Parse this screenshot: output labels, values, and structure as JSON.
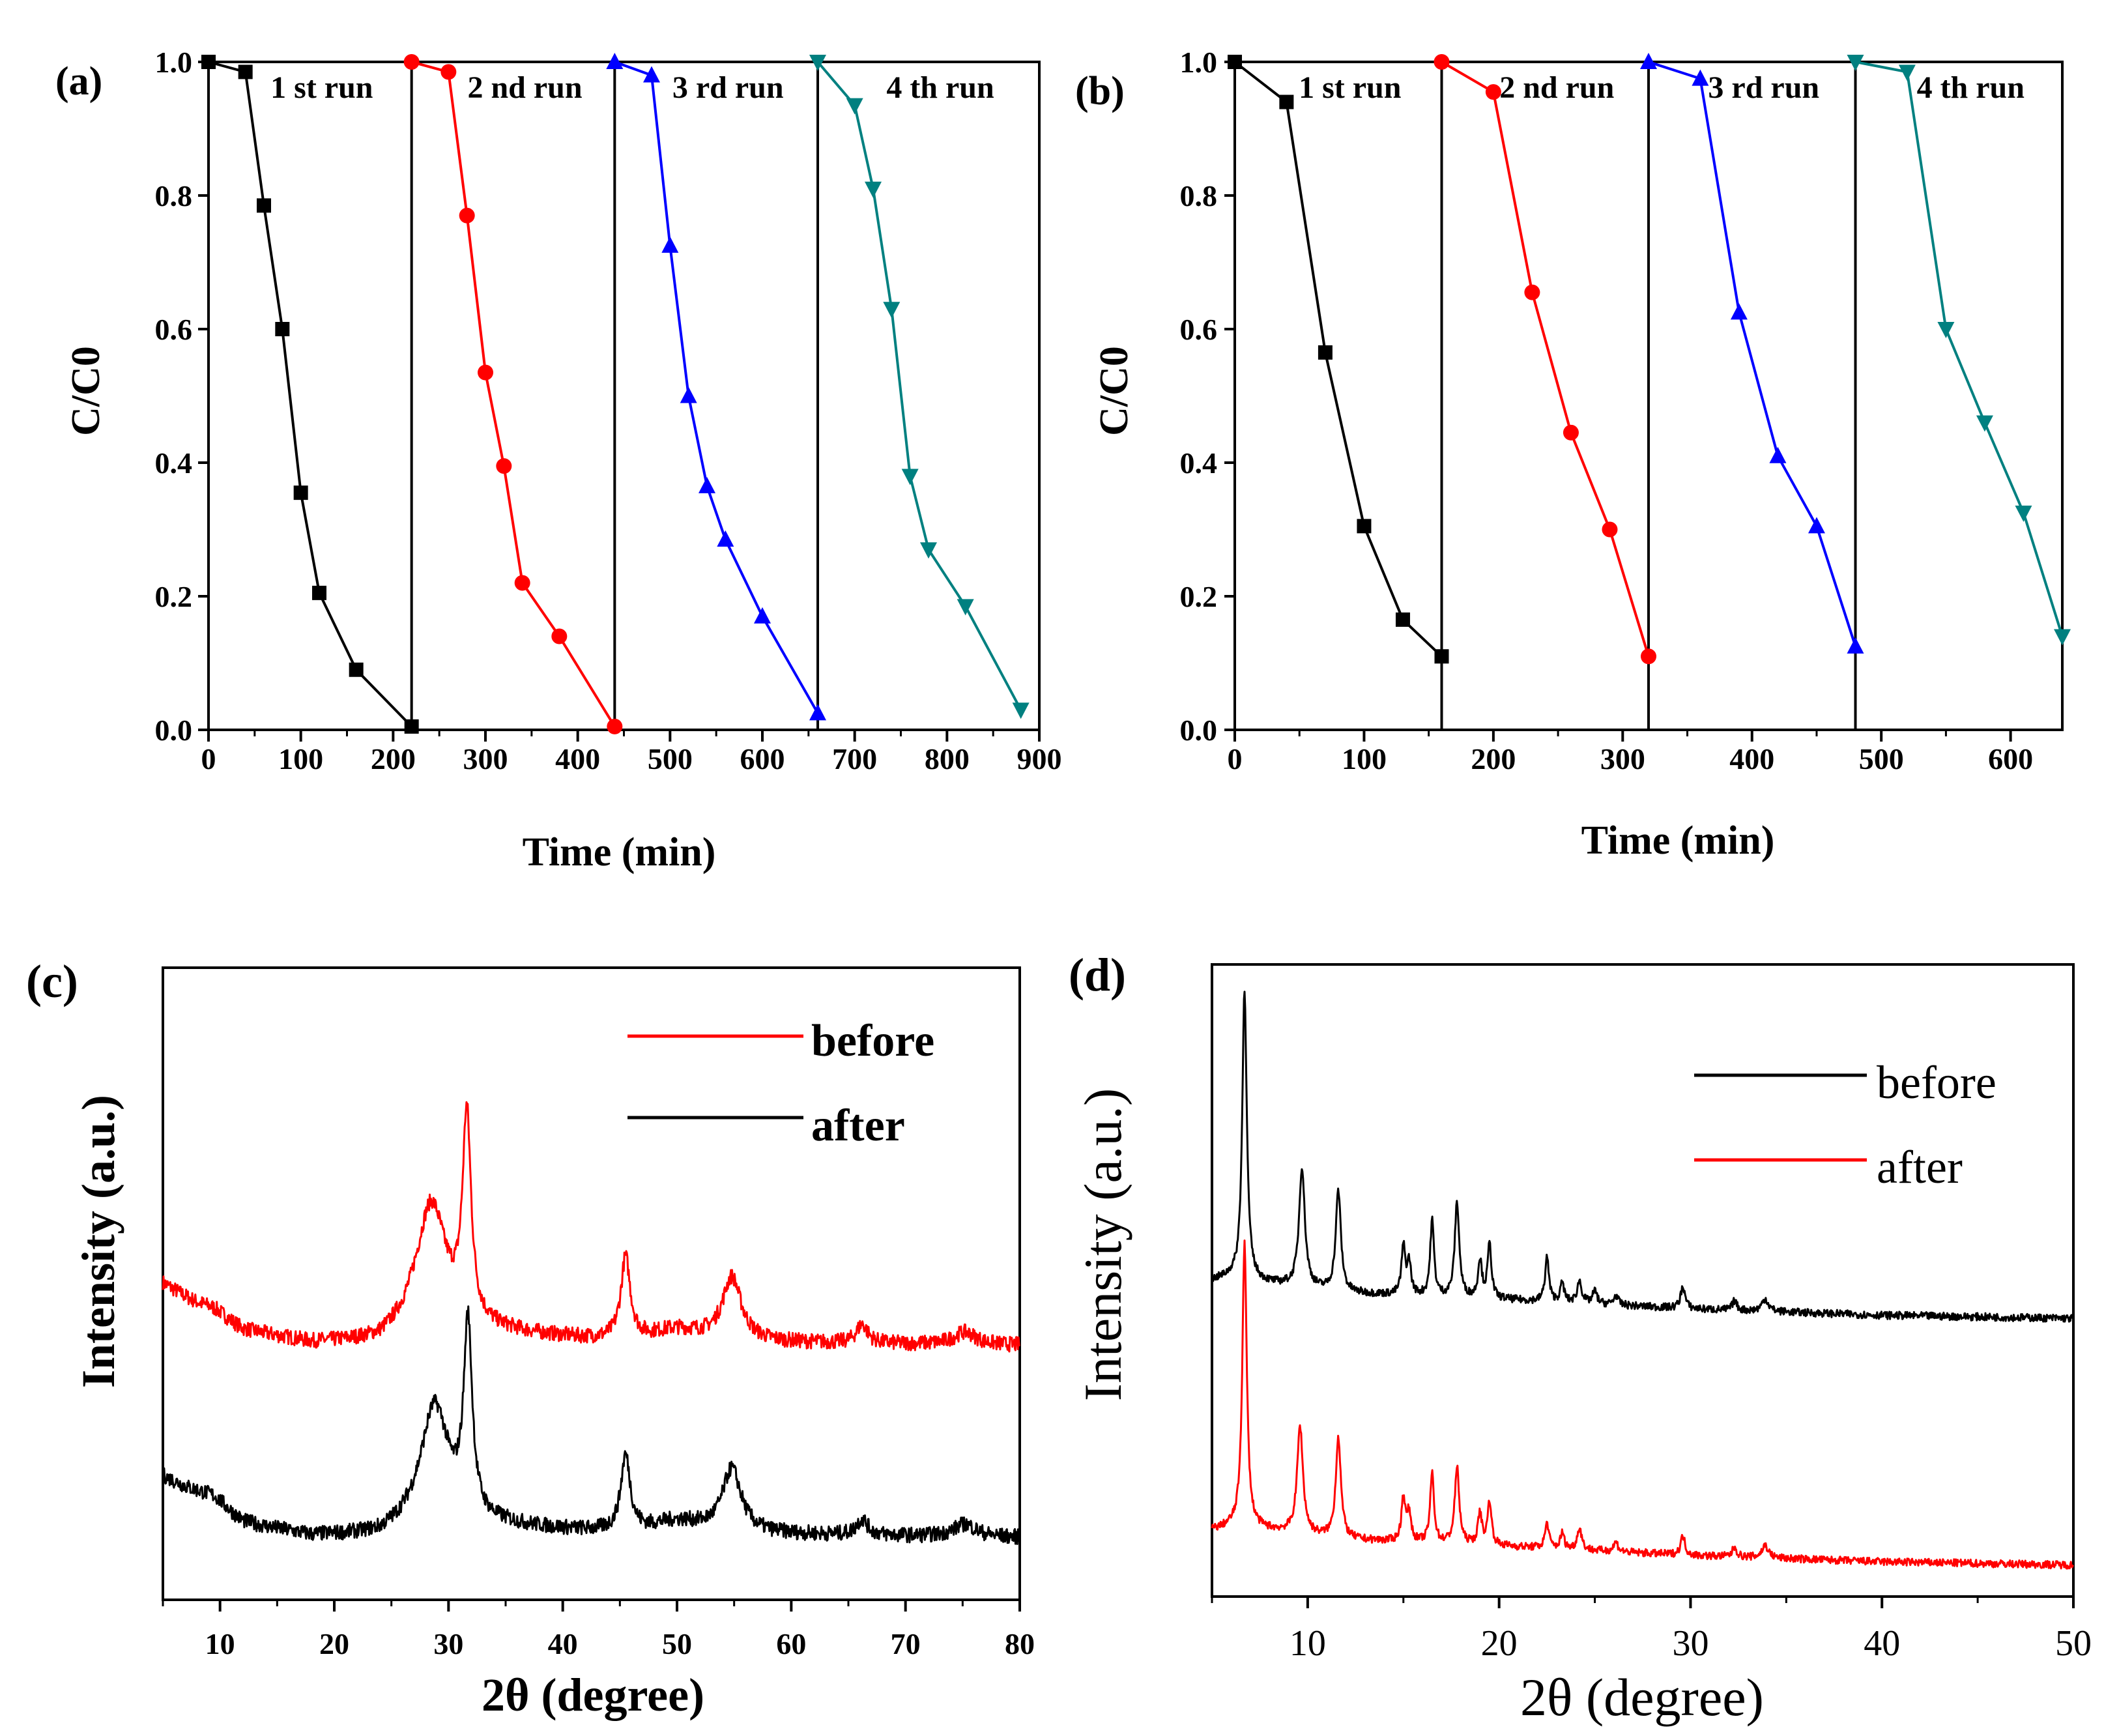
{
  "chart_data": [
    {
      "panel": "(a)",
      "type": "line",
      "xlabel": "Time (min)",
      "ylabel": "C/C0",
      "xlim": [
        0,
        900
      ],
      "ylim": [
        0,
        1.0
      ],
      "xticks": [
        "0",
        "100",
        "200",
        "300",
        "400",
        "500",
        "600",
        "700",
        "800",
        "900"
      ],
      "yticks": [
        "0.0",
        "0.2",
        "0.4",
        "0.6",
        "0.8",
        "1.0"
      ],
      "dividers": [
        220,
        440,
        660
      ],
      "run_labels": [
        "1 st run",
        "2 nd run",
        "3 rd run",
        "4 th run"
      ],
      "series": [
        {
          "name": "1 st run",
          "color": "#000000",
          "marker": "square",
          "x": [
            0,
            40,
            60,
            80,
            100,
            120,
            160,
            220
          ],
          "y": [
            1.0,
            0.985,
            0.785,
            0.6,
            0.355,
            0.205,
            0.09,
            0.005
          ]
        },
        {
          "name": "2 nd run",
          "color": "#ff0000",
          "marker": "circle",
          "x": [
            220,
            260,
            280,
            300,
            320,
            340,
            380,
            440
          ],
          "y": [
            1.0,
            0.985,
            0.77,
            0.535,
            0.395,
            0.22,
            0.14,
            0.005
          ]
        },
        {
          "name": "3 rd run",
          "color": "#0000ff",
          "marker": "triangle-up",
          "x": [
            440,
            480,
            500,
            520,
            540,
            560,
            600,
            660
          ],
          "y": [
            1.0,
            0.98,
            0.725,
            0.5,
            0.365,
            0.285,
            0.17,
            0.025
          ]
        },
        {
          "name": "4 th run",
          "color": "#008080",
          "marker": "triangle-down",
          "x": [
            660,
            700,
            720,
            740,
            760,
            780,
            820,
            880
          ],
          "y": [
            1.0,
            0.935,
            0.81,
            0.63,
            0.38,
            0.27,
            0.185,
            0.03
          ]
        }
      ]
    },
    {
      "panel": "(b)",
      "type": "line",
      "xlabel": "Time (min)",
      "ylabel": "C/C0",
      "xlim": [
        0,
        640
      ],
      "ylim": [
        0,
        1.0
      ],
      "xticks": [
        "0",
        "100",
        "200",
        "300",
        "400",
        "500",
        "600"
      ],
      "yticks": [
        "0.0",
        "0.2",
        "0.4",
        "0.6",
        "0.8",
        "1.0"
      ],
      "dividers": [
        160,
        320,
        480
      ],
      "run_labels": [
        "1 st run",
        "2 nd run",
        "3 rd run",
        "4 th run"
      ],
      "series": [
        {
          "name": "1 st run",
          "color": "#000000",
          "marker": "square",
          "x": [
            0,
            40,
            70,
            100,
            130,
            160
          ],
          "y": [
            1.0,
            0.94,
            0.565,
            0.305,
            0.165,
            0.11
          ]
        },
        {
          "name": "2 nd run",
          "color": "#ff0000",
          "marker": "circle",
          "x": [
            160,
            200,
            230,
            260,
            290,
            320
          ],
          "y": [
            1.0,
            0.955,
            0.655,
            0.445,
            0.3,
            0.11
          ]
        },
        {
          "name": "3 rd run",
          "color": "#0000ff",
          "marker": "triangle-up",
          "x": [
            320,
            360,
            390,
            420,
            450,
            480
          ],
          "y": [
            1.0,
            0.975,
            0.625,
            0.41,
            0.305,
            0.125
          ]
        },
        {
          "name": "4 th run",
          "color": "#008080",
          "marker": "triangle-down",
          "x": [
            480,
            520,
            550,
            580,
            610,
            640
          ],
          "y": [
            1.0,
            0.985,
            0.6,
            0.46,
            0.325,
            0.14
          ]
        }
      ]
    },
    {
      "panel": "(c)",
      "type": "line",
      "xlabel": "2θ (degree)",
      "ylabel": "Intensity (a.u.)",
      "xlim": [
        5,
        80
      ],
      "ylim": [
        0,
        1.0
      ],
      "xticks": [
        "10",
        "20",
        "30",
        "40",
        "50",
        "60",
        "70",
        "80"
      ],
      "legend_position": "top-right",
      "series": [
        {
          "name": "before",
          "color": "#ff0000",
          "background": [
            [
              5,
              0.5
            ],
            [
              8,
              0.465
            ],
            [
              12,
              0.425
            ],
            [
              18,
              0.405
            ],
            [
              24,
              0.405
            ],
            [
              27,
              0.425
            ],
            [
              35,
              0.42
            ],
            [
              45,
              0.405
            ],
            [
              60,
              0.405
            ],
            [
              80,
              0.402
            ]
          ],
          "peaks": [
            [
              9.5,
              0.01,
              1.5
            ],
            [
              28.5,
              0.2,
              1.6
            ],
            [
              31.6,
              0.32,
              0.45
            ],
            [
              45.5,
              0.13,
              0.5
            ],
            [
              50,
              0.02,
              3.0
            ],
            [
              54.8,
              0.1,
              1.0
            ],
            [
              66.2,
              0.03,
              0.6
            ],
            [
              75.2,
              0.02,
              1.2
            ]
          ]
        },
        {
          "name": "after",
          "color": "#000000",
          "background": [
            [
              5,
              0.195
            ],
            [
              8,
              0.165
            ],
            [
              12,
              0.12
            ],
            [
              18,
              0.1
            ],
            [
              24,
              0.1
            ],
            [
              27,
              0.115
            ],
            [
              35,
              0.115
            ],
            [
              45,
              0.102
            ],
            [
              60,
              0.102
            ],
            [
              80,
              0.098
            ]
          ],
          "peaks": [
            [
              9.5,
              0.015,
              1.5
            ],
            [
              28.8,
              0.19,
              1.5
            ],
            [
              31.7,
              0.3,
              0.45
            ],
            [
              45.5,
              0.12,
              0.5
            ],
            [
              50,
              0.02,
              3.0
            ],
            [
              54.8,
              0.1,
              1.0
            ],
            [
              66.2,
              0.025,
              0.6
            ],
            [
              75.2,
              0.02,
              1.2
            ]
          ]
        }
      ]
    },
    {
      "panel": "(d)",
      "type": "line",
      "xlabel": "2θ (degree)",
      "ylabel": "Intensity (a.u.)",
      "xlim": [
        5,
        50
      ],
      "ylim": [
        0,
        1.0
      ],
      "xticks": [
        "10",
        "20",
        "30",
        "40",
        "50"
      ],
      "legend_position": "top-right",
      "series": [
        {
          "name": "before",
          "color": "#000000",
          "background": [
            [
              5,
              0.5
            ],
            [
              6,
              0.505
            ],
            [
              8,
              0.495
            ],
            [
              12,
              0.48
            ],
            [
              20,
              0.47
            ],
            [
              30,
              0.455
            ],
            [
              40,
              0.445
            ],
            [
              50,
              0.44
            ]
          ],
          "peaks": [
            [
              6.7,
              0.46,
              0.14
            ],
            [
              9.7,
              0.19,
              0.18
            ],
            [
              11.6,
              0.16,
              0.16
            ],
            [
              15.0,
              0.075,
              0.12
            ],
            [
              15.3,
              0.05,
              0.12
            ],
            [
              16.5,
              0.12,
              0.12
            ],
            [
              17.8,
              0.15,
              0.14
            ],
            [
              19.0,
              0.06,
              0.12
            ],
            [
              19.5,
              0.085,
              0.12
            ],
            [
              22.5,
              0.07,
              0.12
            ],
            [
              23.3,
              0.03,
              0.12
            ],
            [
              24.2,
              0.035,
              0.14
            ],
            [
              25.0,
              0.02,
              0.14
            ],
            [
              26.1,
              0.015,
              0.14
            ],
            [
              29.6,
              0.035,
              0.14
            ],
            [
              32.3,
              0.015,
              0.14
            ],
            [
              33.9,
              0.02,
              0.2
            ]
          ]
        },
        {
          "name": "after",
          "color": "#ff0000",
          "background": [
            [
              5,
              0.105
            ],
            [
              6,
              0.11
            ],
            [
              8,
              0.105
            ],
            [
              12,
              0.09
            ],
            [
              20,
              0.08
            ],
            [
              30,
              0.065
            ],
            [
              40,
              0.055
            ],
            [
              50,
              0.05
            ]
          ],
          "peaks": [
            [
              6.7,
              0.45,
              0.14
            ],
            [
              9.6,
              0.17,
              0.18
            ],
            [
              11.6,
              0.16,
              0.16
            ],
            [
              15.0,
              0.07,
              0.12
            ],
            [
              15.3,
              0.045,
              0.12
            ],
            [
              16.5,
              0.11,
              0.12
            ],
            [
              17.8,
              0.12,
              0.14
            ],
            [
              19.0,
              0.05,
              0.12
            ],
            [
              19.5,
              0.07,
              0.12
            ],
            [
              22.5,
              0.04,
              0.12
            ],
            [
              23.3,
              0.025,
              0.12
            ],
            [
              24.2,
              0.035,
              0.14
            ],
            [
              26.1,
              0.015,
              0.14
            ],
            [
              29.6,
              0.03,
              0.14
            ],
            [
              32.3,
              0.015,
              0.14
            ],
            [
              33.9,
              0.02,
              0.2
            ]
          ]
        }
      ]
    }
  ]
}
